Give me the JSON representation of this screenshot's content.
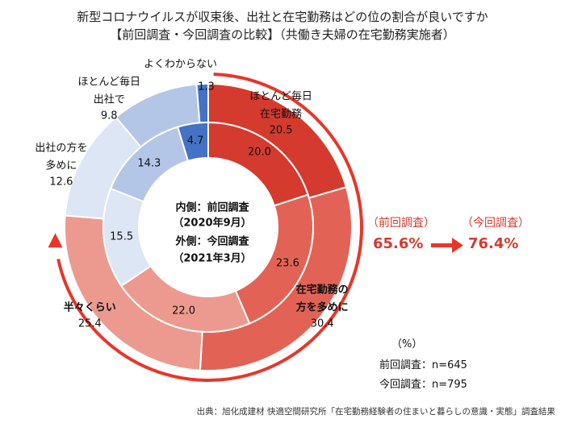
{
  "title_line1": "新型コロナウイルスが収束後、出社と在宅勤務はどの位の割合が良いですか",
  "title_line2": "【前回調査・今回調査の比較】（共働き夫婦の在宅勤務実施者）",
  "colors": {
    "mostly_home": "#d53a2e",
    "more_home": "#e26355",
    "half": "#ec9a8f",
    "more_office": "#dde6f4",
    "mostly_office": "#b4c6e7",
    "unknown": "#4472c4",
    "accent": "#e8362a"
  },
  "chart_data": {
    "type": "pie",
    "title": "新型コロナウイルスが収束後、出社と在宅勤務はどの位の割合が良いですか",
    "categories": [
      "ほとんど毎日在宅勤務",
      "在宅勤務の方を多めに",
      "半々くらい",
      "出社の方を多めに",
      "ほとんど毎日出社で",
      "よくわからない"
    ],
    "category_labels": [
      [
        "ほとんど毎日",
        "在宅勤務"
      ],
      [
        "在宅勤務の",
        "方を多めに"
      ],
      [
        "半々くらい"
      ],
      [
        "出社の方を",
        "多めに"
      ],
      [
        "ほとんど毎日",
        "出社で"
      ],
      [
        "よくわからない"
      ]
    ],
    "series": [
      {
        "name": "内側：前回調査（2020年9月）",
        "values": [
          20.0,
          23.6,
          22.0,
          15.5,
          14.3,
          4.7
        ]
      },
      {
        "name": "外側：今回調査（2021年3月）",
        "values": [
          20.5,
          30.4,
          25.4,
          12.6,
          9.8,
          1.3
        ]
      }
    ],
    "unit": "(%)",
    "legend": {
      "inner_line1": "内側：前回調査",
      "inner_line2": "（2020年9月）",
      "outer_line1": "外側：今回調査",
      "outer_line2": "（2021年3月）"
    }
  },
  "comparison": {
    "prev_label": "（前回調査）",
    "prev_value": "65.6%",
    "curr_label": "（今回調査）",
    "curr_value": "76.4%"
  },
  "notes": {
    "unit": "（%）",
    "prev_n": "前回調査：n=645",
    "curr_n": "今回調査：n=795"
  },
  "source": "出典：旭化成建材 快適空間研究所「在宅勤務経験者の住まいと暮らしの意識・実態」調査結果"
}
